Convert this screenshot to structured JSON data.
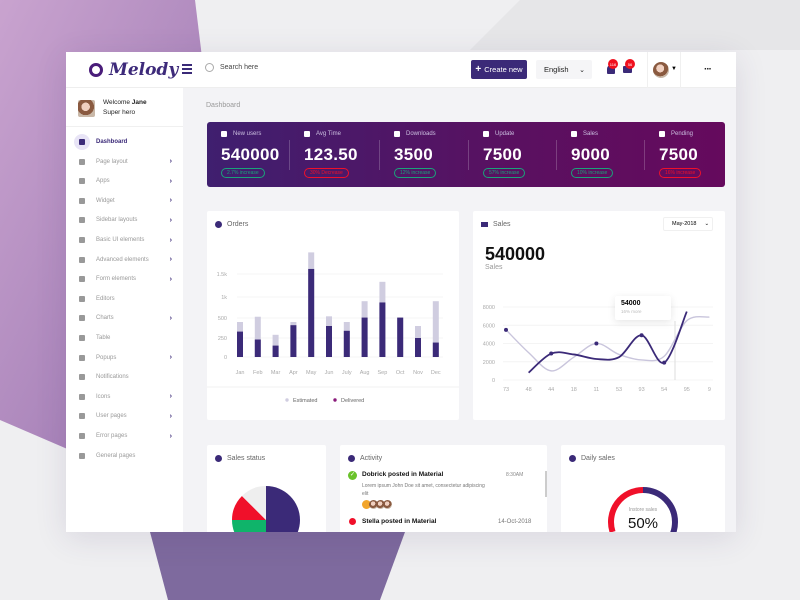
{
  "header": {
    "logo": "Melody",
    "search_placeholder": "Search here",
    "create_label": "Create new",
    "language": "English",
    "notifications_count": "116",
    "messages_count": "56",
    "more_label": "···"
  },
  "sidebar": {
    "welcome": "Welcome",
    "user_name": "Jane",
    "user_role": "Super hero",
    "items": [
      {
        "label": "Dashboard",
        "icon": "home-icon",
        "arrow": false
      },
      {
        "label": "Page layout",
        "icon": "layout-icon",
        "arrow": true
      },
      {
        "label": "Apps",
        "icon": "apps-icon",
        "arrow": true
      },
      {
        "label": "Widget",
        "icon": "widget-icon",
        "arrow": true
      },
      {
        "label": "Sidebar layouts",
        "icon": "sidebar-icon",
        "arrow": true
      },
      {
        "label": "Basic UI elements",
        "icon": "grid-icon",
        "arrow": true
      },
      {
        "label": "Advanced elements",
        "icon": "question-icon",
        "arrow": true
      },
      {
        "label": "Form elements",
        "icon": "form-icon",
        "arrow": true
      },
      {
        "label": "Editors",
        "icon": "edit-icon",
        "arrow": false
      },
      {
        "label": "Charts",
        "icon": "pie-icon",
        "arrow": true
      },
      {
        "label": "Table",
        "icon": "table-icon",
        "arrow": false
      },
      {
        "label": "Popups",
        "icon": "popup-icon",
        "arrow": true
      },
      {
        "label": "Notifications",
        "icon": "bell-icon",
        "arrow": false
      },
      {
        "label": "Icons",
        "icon": "circle-icon",
        "arrow": true
      },
      {
        "label": "User pages",
        "icon": "users-icon",
        "arrow": true
      },
      {
        "label": "Error pages",
        "icon": "error-icon",
        "arrow": true
      },
      {
        "label": "General pages",
        "icon": "file-icon",
        "arrow": false
      }
    ]
  },
  "breadcrumb": "Dashboard",
  "stats": [
    {
      "label": "New users",
      "value": "540000",
      "change": "2.7% increase",
      "trend": "up"
    },
    {
      "label": "Avg Time",
      "value": "123.50",
      "change": "30% Decrease",
      "trend": "down"
    },
    {
      "label": "Downloads",
      "value": "3500",
      "change": "12% increase",
      "trend": "up"
    },
    {
      "label": "Update",
      "value": "7500",
      "change": "57% increase",
      "trend": "up"
    },
    {
      "label": "Sales",
      "value": "9000",
      "change": "10% increase",
      "trend": "up"
    },
    {
      "label": "Pending",
      "value": "7500",
      "change": "16% increase",
      "trend": "down"
    }
  ],
  "colors": {
    "primary": "#3b2a78",
    "up": "#1aa37a",
    "down": "#f0102a",
    "estimated": "#d0cde0"
  },
  "orders": {
    "title": "Orders"
  },
  "sales": {
    "title": "Sales",
    "period": "May-2018",
    "total": "540000",
    "total_label": "Sales",
    "tooltip_value": "54000",
    "tooltip_note": "16% more"
  },
  "sales_status": {
    "title": "Sales status"
  },
  "activity": {
    "title": "Activity",
    "items": [
      {
        "title": "Dobrick posted in Material",
        "time": "8:30AM",
        "text": "Lorem ipsum John Doe sit amet, consectetur adipiscing elit",
        "status": "success"
      },
      {
        "title": "Stella posted in Material",
        "time": "14-Oct-2018",
        "status": "error"
      }
    ]
  },
  "daily_sales": {
    "title": "Daily sales",
    "label": "Instore sales",
    "value": "50%"
  },
  "chart_data": [
    {
      "type": "bar",
      "categories": [
        "Jan",
        "Feb",
        "Mar",
        "Apr",
        "May",
        "Jun",
        "July",
        "Aug",
        "Sep",
        "Oct",
        "Nov",
        "Dec"
      ],
      "yticks": [
        "0",
        "250",
        "500",
        "1k",
        "1.5k"
      ],
      "series": [
        {
          "name": "Estimated",
          "values": [
            450,
            530,
            290,
            450,
            1970,
            540,
            450,
            900,
            1330,
            510,
            400,
            900
          ]
        },
        {
          "name": "Delivered",
          "values": [
            330,
            230,
            150,
            410,
            1610,
            400,
            340,
            510,
            870,
            510,
            250,
            190
          ]
        }
      ],
      "legend": "bottom"
    },
    {
      "type": "line",
      "categories": [
        "73",
        "48",
        "44",
        "18",
        "11",
        "53",
        "93",
        "54",
        "95",
        "9"
      ],
      "yticks": [
        0,
        2000,
        4000,
        6000,
        8000
      ],
      "ylim": [
        0,
        8000
      ],
      "series": [
        {
          "values": [
            5500,
            3000,
            1000,
            2500,
            4000,
            2800,
            2200,
            2600,
            6500,
            6900
          ]
        },
        {
          "values": [
            null,
            800,
            2900,
            2800,
            2300,
            2500,
            4900,
            1900,
            7500,
            null
          ]
        }
      ]
    },
    {
      "type": "pie",
      "values": [
        50,
        25,
        12.5,
        12.5
      ],
      "colors": [
        "#3b2a78",
        "#0fb46a",
        "#f0102a",
        "#eeeeee"
      ]
    },
    {
      "type": "donut",
      "values": [
        50,
        30
      ],
      "colors": [
        "#3b2a78",
        "#f0102a"
      ]
    }
  ]
}
